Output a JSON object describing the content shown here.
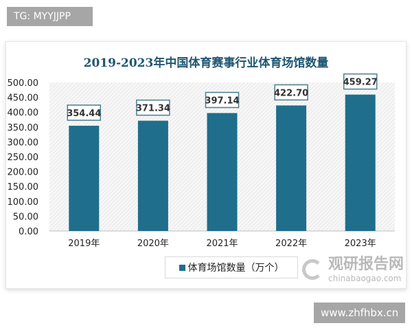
{
  "watermarks": {
    "tg": "TG: MYYJJPP",
    "site": "www.zhfhbx.cn",
    "logo_cn": "观研报告网",
    "logo_en": "chinabaogao.com"
  },
  "colors": {
    "bar": "#1f6e8c",
    "title": "#1f5673",
    "label_border": "#4a7d8f"
  },
  "chart_data": {
    "type": "bar",
    "title": "2019-2023年中国体育赛事行业体育场馆数量",
    "categories": [
      "2019年",
      "2020年",
      "2021年",
      "2022年",
      "2023年"
    ],
    "series": [
      {
        "name": "体育场馆数量（万个）",
        "values": [
          354.44,
          371.34,
          397.14,
          422.7,
          459.27
        ]
      }
    ],
    "value_labels": [
      "354.44",
      "371.34",
      "397.14",
      "422.70",
      "459.27"
    ],
    "ylim": [
      0,
      500
    ],
    "yticks": [
      "0.00",
      "50.00",
      "100.00",
      "150.00",
      "200.00",
      "250.00",
      "300.00",
      "350.00",
      "400.00",
      "450.00",
      "500.00"
    ],
    "grid": false,
    "legend_position": "bottom"
  }
}
